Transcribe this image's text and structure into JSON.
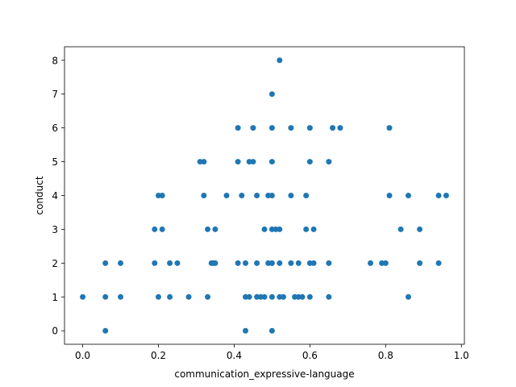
{
  "chart_data": {
    "type": "scatter",
    "xlabel": "communication_expressive-language",
    "ylabel": "conduct",
    "xlim": [
      -0.048,
      1.008
    ],
    "ylim": [
      -0.4,
      8.4
    ],
    "xticks": [
      0.0,
      0.2,
      0.4,
      0.6,
      0.8,
      1.0
    ],
    "xtick_labels": [
      "0.0",
      "0.2",
      "0.4",
      "0.6",
      "0.8",
      "1.0"
    ],
    "yticks": [
      0,
      1,
      2,
      3,
      4,
      5,
      6,
      7,
      8
    ],
    "ytick_labels": [
      "0",
      "1",
      "2",
      "3",
      "4",
      "5",
      "6",
      "7",
      "8"
    ],
    "grid": false,
    "marker_color": "#1f77b4",
    "points": [
      {
        "x": 0.0,
        "y": 1
      },
      {
        "x": 0.06,
        "y": 0
      },
      {
        "x": 0.06,
        "y": 1
      },
      {
        "x": 0.06,
        "y": 2
      },
      {
        "x": 0.1,
        "y": 1
      },
      {
        "x": 0.1,
        "y": 2
      },
      {
        "x": 0.19,
        "y": 2
      },
      {
        "x": 0.19,
        "y": 3
      },
      {
        "x": 0.2,
        "y": 1
      },
      {
        "x": 0.2,
        "y": 4
      },
      {
        "x": 0.21,
        "y": 3
      },
      {
        "x": 0.21,
        "y": 4
      },
      {
        "x": 0.23,
        "y": 1
      },
      {
        "x": 0.23,
        "y": 2
      },
      {
        "x": 0.25,
        "y": 2
      },
      {
        "x": 0.28,
        "y": 1
      },
      {
        "x": 0.31,
        "y": 5
      },
      {
        "x": 0.32,
        "y": 4
      },
      {
        "x": 0.32,
        "y": 5
      },
      {
        "x": 0.33,
        "y": 1
      },
      {
        "x": 0.33,
        "y": 3
      },
      {
        "x": 0.34,
        "y": 2
      },
      {
        "x": 0.345,
        "y": 2
      },
      {
        "x": 0.35,
        "y": 2
      },
      {
        "x": 0.35,
        "y": 3
      },
      {
        "x": 0.38,
        "y": 4
      },
      {
        "x": 0.41,
        "y": 2
      },
      {
        "x": 0.41,
        "y": 5
      },
      {
        "x": 0.41,
        "y": 6
      },
      {
        "x": 0.42,
        "y": 4
      },
      {
        "x": 0.43,
        "y": 0
      },
      {
        "x": 0.43,
        "y": 1
      },
      {
        "x": 0.43,
        "y": 2
      },
      {
        "x": 0.44,
        "y": 1
      },
      {
        "x": 0.44,
        "y": 5
      },
      {
        "x": 0.45,
        "y": 5
      },
      {
        "x": 0.45,
        "y": 6
      },
      {
        "x": 0.46,
        "y": 2
      },
      {
        "x": 0.46,
        "y": 4
      },
      {
        "x": 0.46,
        "y": 1
      },
      {
        "x": 0.47,
        "y": 1
      },
      {
        "x": 0.48,
        "y": 1
      },
      {
        "x": 0.48,
        "y": 3
      },
      {
        "x": 0.49,
        "y": 2
      },
      {
        "x": 0.49,
        "y": 4
      },
      {
        "x": 0.5,
        "y": 0
      },
      {
        "x": 0.5,
        "y": 1
      },
      {
        "x": 0.5,
        "y": 2
      },
      {
        "x": 0.5,
        "y": 3
      },
      {
        "x": 0.5,
        "y": 4
      },
      {
        "x": 0.5,
        "y": 5
      },
      {
        "x": 0.5,
        "y": 6
      },
      {
        "x": 0.5,
        "y": 7
      },
      {
        "x": 0.51,
        "y": 3
      },
      {
        "x": 0.52,
        "y": 1
      },
      {
        "x": 0.52,
        "y": 2
      },
      {
        "x": 0.52,
        "y": 3
      },
      {
        "x": 0.52,
        "y": 8
      },
      {
        "x": 0.53,
        "y": 1
      },
      {
        "x": 0.55,
        "y": 2
      },
      {
        "x": 0.55,
        "y": 4
      },
      {
        "x": 0.55,
        "y": 6
      },
      {
        "x": 0.56,
        "y": 1
      },
      {
        "x": 0.57,
        "y": 1
      },
      {
        "x": 0.57,
        "y": 2
      },
      {
        "x": 0.58,
        "y": 1
      },
      {
        "x": 0.59,
        "y": 3
      },
      {
        "x": 0.59,
        "y": 4
      },
      {
        "x": 0.6,
        "y": 1
      },
      {
        "x": 0.6,
        "y": 2
      },
      {
        "x": 0.6,
        "y": 5
      },
      {
        "x": 0.6,
        "y": 6
      },
      {
        "x": 0.61,
        "y": 2
      },
      {
        "x": 0.61,
        "y": 3
      },
      {
        "x": 0.65,
        "y": 1
      },
      {
        "x": 0.65,
        "y": 2
      },
      {
        "x": 0.65,
        "y": 5
      },
      {
        "x": 0.66,
        "y": 6
      },
      {
        "x": 0.68,
        "y": 6
      },
      {
        "x": 0.76,
        "y": 2
      },
      {
        "x": 0.79,
        "y": 2
      },
      {
        "x": 0.8,
        "y": 2
      },
      {
        "x": 0.81,
        "y": 4
      },
      {
        "x": 0.81,
        "y": 6
      },
      {
        "x": 0.84,
        "y": 3
      },
      {
        "x": 0.86,
        "y": 1
      },
      {
        "x": 0.86,
        "y": 4
      },
      {
        "x": 0.89,
        "y": 2
      },
      {
        "x": 0.89,
        "y": 3
      },
      {
        "x": 0.94,
        "y": 2
      },
      {
        "x": 0.94,
        "y": 4
      },
      {
        "x": 0.96,
        "y": 4
      }
    ]
  }
}
